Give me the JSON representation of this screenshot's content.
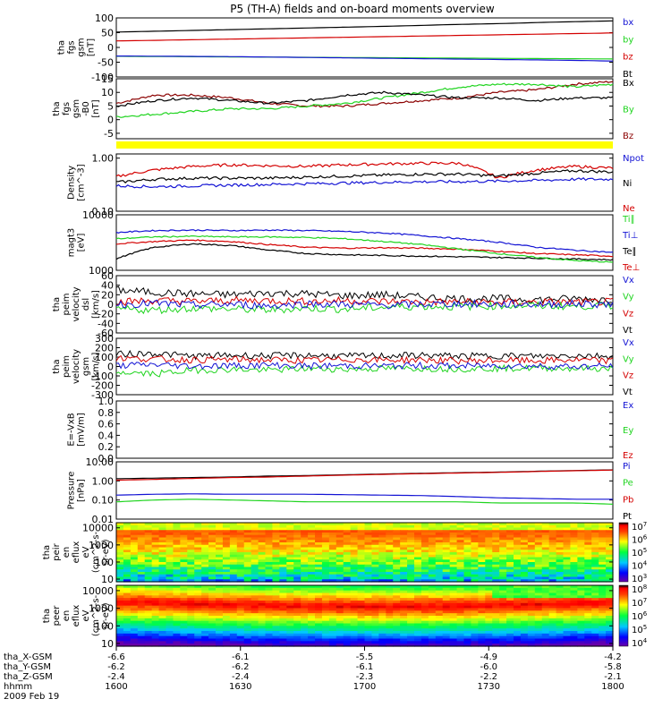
{
  "title": "P5 (TH-A) fields and on-board moments overview",
  "colors": {
    "black": "#000000",
    "red": "#d40000",
    "green": "#1fd41f",
    "blue": "#1414d4",
    "darkred": "#8b0000",
    "yellow": "#ffff00"
  },
  "chart_data": [
    {
      "type": "line",
      "ylabel": [
        "tha",
        "fgs",
        "gsm",
        "[nT]"
      ],
      "ylim": [
        -100,
        100
      ],
      "ticks": [
        100,
        50,
        0,
        -50,
        -100
      ],
      "series": [
        {
          "name": "Bt",
          "color": "black",
          "values": [
            52,
            56,
            60,
            64,
            68,
            72,
            77,
            81,
            86,
            90
          ]
        },
        {
          "name": "bz",
          "color": "red",
          "values": [
            22,
            25,
            28,
            31,
            34,
            37,
            40,
            43,
            46,
            49
          ]
        },
        {
          "name": "by",
          "color": "green",
          "values": [
            -30,
            -31,
            -32,
            -33,
            -34,
            -35,
            -36,
            -37,
            -38,
            -39
          ]
        },
        {
          "name": "bx",
          "color": "blue",
          "values": [
            -29,
            -30,
            -31,
            -33,
            -35,
            -37,
            -39,
            -41,
            -43,
            -46
          ]
        }
      ]
    },
    {
      "type": "line",
      "ylabel": [
        "tha",
        "fgs",
        "gsm",
        "-B0",
        "[nT]"
      ],
      "ylim": [
        -7,
        15
      ],
      "ticks": [
        15,
        10,
        5,
        0,
        -5
      ],
      "series": [
        {
          "name": "Bz",
          "color": "darkred",
          "values": [
            6,
            9,
            9,
            8,
            6,
            5,
            5,
            6,
            7,
            8,
            10,
            11,
            13,
            14
          ]
        },
        {
          "name": "By",
          "color": "green",
          "values": [
            1,
            2,
            3,
            4,
            4,
            5,
            6,
            8,
            10,
            12,
            13,
            13,
            12,
            13
          ]
        },
        {
          "name": "Bx",
          "color": "black",
          "values": [
            5,
            7,
            8,
            7,
            6,
            7,
            9,
            10,
            9,
            8,
            8,
            7,
            8,
            8
          ]
        }
      ]
    },
    {
      "type": "line",
      "ylabel": [
        "Density",
        "[cm^-3]"
      ],
      "yscale": "log",
      "ylim": [
        0.1,
        1.2
      ],
      "ticks": [
        1.0,
        0.1
      ],
      "series": [
        {
          "name": "Ne",
          "color": "red",
          "values": [
            0.45,
            0.6,
            0.7,
            0.75,
            0.72,
            0.7,
            0.75,
            0.78,
            0.8,
            0.8,
            0.42,
            0.6,
            0.7,
            0.65
          ]
        },
        {
          "name": "Ni",
          "color": "black",
          "values": [
            0.35,
            0.4,
            0.42,
            0.42,
            0.42,
            0.44,
            0.46,
            0.48,
            0.5,
            0.5,
            0.46,
            0.52,
            0.58,
            0.55
          ]
        },
        {
          "name": "Npot",
          "color": "blue",
          "values": [
            0.3,
            0.29,
            0.3,
            0.31,
            0.32,
            0.33,
            0.34,
            0.35,
            0.36,
            0.36,
            0.37,
            0.38,
            0.4,
            0.4
          ]
        }
      ]
    },
    {
      "type": "line",
      "ylabel": [
        "magt3",
        "[eV]"
      ],
      "yscale": "log",
      "ylim": [
        1000,
        10000
      ],
      "ticks": [
        10000,
        1000
      ],
      "series": [
        {
          "name": "Te⊥",
          "color": "red",
          "values": [
            3000,
            3300,
            3500,
            3300,
            2900,
            2600,
            2500,
            2550,
            2500,
            2400,
            2200,
            2000,
            1900,
            1800
          ]
        },
        {
          "name": "Te∥",
          "color": "black",
          "values": [
            1600,
            2600,
            3000,
            2800,
            2300,
            2000,
            1900,
            1850,
            1800,
            1750,
            1700,
            1650,
            1600,
            1550
          ]
        },
        {
          "name": "Ti⊥",
          "color": "blue",
          "values": [
            4800,
            5200,
            5300,
            5200,
            5300,
            5200,
            5000,
            4700,
            4200,
            3700,
            3200,
            2600,
            2300,
            2100
          ]
        },
        {
          "name": "Ti∥",
          "color": "green",
          "values": [
            3700,
            4000,
            4100,
            4000,
            4000,
            3900,
            3700,
            3300,
            2900,
            2400,
            2000,
            1700,
            1500,
            1400
          ]
        }
      ]
    },
    {
      "type": "line",
      "ylabel": [
        "tha",
        "peim",
        "velocity",
        "dsl",
        "[km/s]"
      ],
      "ylim": [
        -60,
        60
      ],
      "ticks": [
        60,
        40,
        20,
        0,
        -20,
        -40,
        -60
      ],
      "series": [
        {
          "name": "Vt",
          "color": "black",
          "values": [
            30,
            25,
            22,
            20,
            24,
            22,
            18,
            20,
            15,
            12,
            12,
            10,
            12,
            10
          ]
        },
        {
          "name": "Vz",
          "color": "red",
          "values": [
            5,
            8,
            6,
            8,
            8,
            6,
            8,
            6,
            5,
            5,
            4,
            5,
            4,
            5
          ]
        },
        {
          "name": "Vy",
          "color": "green",
          "values": [
            -10,
            -12,
            -8,
            -10,
            -12,
            -8,
            -10,
            -6,
            -4,
            -5,
            -3,
            -3,
            -4,
            -3
          ]
        },
        {
          "name": "Vx",
          "color": "blue",
          "values": [
            0,
            2,
            -2,
            0,
            -3,
            1,
            0,
            -2,
            0,
            1,
            0,
            0,
            1,
            0
          ]
        }
      ]
    },
    {
      "type": "line",
      "ylabel": [
        "tha",
        "peim",
        "velocity",
        "gsm",
        "[km/s]"
      ],
      "ylim": [
        -300,
        300
      ],
      "ticks": [
        300,
        200,
        100,
        0,
        -100,
        -200,
        -300
      ],
      "series": [
        {
          "name": "Vt",
          "color": "black",
          "values": [
            130,
            140,
            110,
            120,
            115,
            120,
            110,
            115,
            120,
            110,
            115,
            110,
            120,
            110
          ]
        },
        {
          "name": "Vz",
          "color": "red",
          "values": [
            90,
            80,
            70,
            75,
            70,
            65,
            75,
            70,
            70,
            60,
            65,
            60,
            70,
            60
          ]
        },
        {
          "name": "Vy",
          "color": "green",
          "values": [
            -60,
            -80,
            -40,
            -30,
            -40,
            -20,
            -30,
            -20,
            -20,
            -25,
            -20,
            -15,
            -20,
            -25
          ]
        },
        {
          "name": "Vx",
          "color": "blue",
          "values": [
            10,
            20,
            5,
            10,
            15,
            5,
            10,
            5,
            10,
            5,
            10,
            5,
            0,
            5
          ]
        }
      ]
    },
    {
      "type": "line",
      "ylabel": [
        "E=-VxB",
        "[mV/m]"
      ],
      "ylim": [
        0,
        1
      ],
      "ticks": [
        1.0,
        0.8,
        0.6,
        0.4,
        0.2,
        0.0
      ],
      "series": [
        {
          "name": "Ez",
          "color": "red",
          "values": []
        },
        {
          "name": "Ey",
          "color": "green",
          "values": []
        },
        {
          "name": "Ex",
          "color": "blue",
          "values": []
        }
      ]
    },
    {
      "type": "line",
      "ylabel": [
        "Pressure",
        "[nPa]"
      ],
      "yscale": "log",
      "ylim": [
        0.01,
        10
      ],
      "ticks": [
        10.0,
        1.0,
        0.1,
        0.01
      ],
      "series": [
        {
          "name": "Pt",
          "color": "black",
          "values": [
            1.3,
            1.4,
            1.5,
            1.6,
            1.8,
            1.9,
            2.1,
            2.3,
            2.5,
            2.7,
            2.9,
            3.2,
            3.5,
            3.8
          ]
        },
        {
          "name": "Pb",
          "color": "red",
          "values": [
            1.1,
            1.2,
            1.35,
            1.5,
            1.6,
            1.8,
            2.0,
            2.2,
            2.4,
            2.6,
            2.8,
            3.1,
            3.4,
            3.7
          ]
        },
        {
          "name": "Pe",
          "color": "green",
          "values": [
            0.08,
            0.1,
            0.11,
            0.1,
            0.09,
            0.08,
            0.08,
            0.08,
            0.08,
            0.08,
            0.07,
            0.07,
            0.07,
            0.06
          ]
        },
        {
          "name": "Pi",
          "color": "blue",
          "values": [
            0.18,
            0.2,
            0.21,
            0.2,
            0.2,
            0.2,
            0.19,
            0.18,
            0.17,
            0.15,
            0.13,
            0.12,
            0.11,
            0.11
          ]
        }
      ]
    },
    {
      "type": "heatmap",
      "ylabel": [
        "tha",
        "peir",
        "en",
        "eflux",
        "eV",
        "(cm^2-s-",
        "sr-eV)"
      ],
      "yscale": "log",
      "ylim": [
        7,
        20000
      ],
      "ticks": [
        "10000",
        "1000",
        "100",
        "10"
      ],
      "colorbar_ticks": [
        "10^7",
        "10^6",
        "10^5",
        "10^4",
        "10^3"
      ]
    },
    {
      "type": "heatmap",
      "ylabel": [
        "tha",
        "peer",
        "en",
        "eflux",
        "eV",
        "(cm^2-s-",
        "sr-eV)"
      ],
      "yscale": "log",
      "ylim": [
        7,
        20000
      ],
      "ticks": [
        "10000",
        "1000",
        "100",
        "10"
      ],
      "colorbar_ticks": [
        "10^8",
        "10^7",
        "10^6",
        "10^5",
        "10^4"
      ]
    }
  ],
  "xaxis": {
    "rows": [
      {
        "label": "tha_X-GSM",
        "values": [
          "-6.6",
          "-6.1",
          "-5.5",
          "-4.9",
          "-4.2"
        ]
      },
      {
        "label": "tha_Y-GSM",
        "values": [
          "-6.2",
          "-6.2",
          "-6.1",
          "-6.0",
          "-5.8"
        ]
      },
      {
        "label": "tha_Z-GSM",
        "values": [
          "-2.4",
          "-2.4",
          "-2.3",
          "-2.2",
          "-2.1"
        ]
      },
      {
        "label": "hhmm",
        "values": [
          "1600",
          "1630",
          "1700",
          "1730",
          "1800"
        ]
      }
    ],
    "date": "2009 Feb 19"
  }
}
